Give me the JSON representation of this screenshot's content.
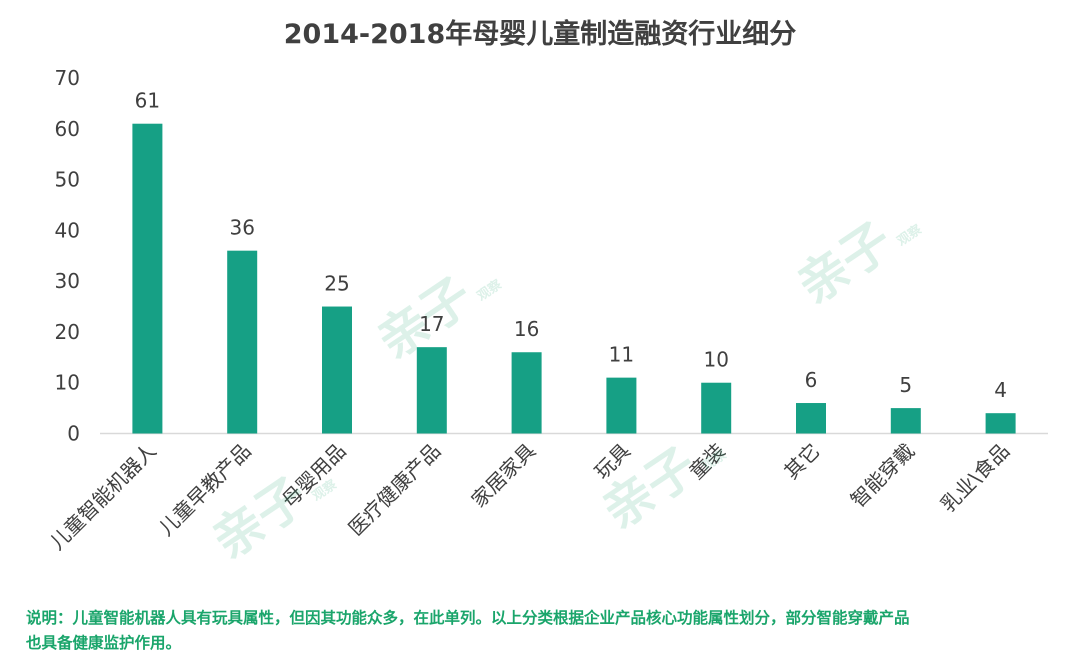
{
  "chart_data": {
    "type": "bar",
    "title": "2014-2018年母婴儿童制造融资行业细分",
    "categories": [
      "儿童智能机器人",
      "儿童早教产品",
      "母婴用品",
      "医疗健康产品",
      "家居家具",
      "玩具",
      "童装",
      "其它",
      "智能穿戴",
      "乳业\\食品"
    ],
    "values": [
      61,
      36,
      25,
      17,
      16,
      11,
      10,
      6,
      5,
      4
    ],
    "yticks": [
      "0",
      "10",
      "20",
      "30",
      "40",
      "50",
      "60",
      "70"
    ],
    "ylim": [
      0,
      70
    ],
    "grid": false,
    "legend": "none",
    "xlabel": "",
    "ylabel": ""
  },
  "colors": {
    "bar": "#16a085",
    "text": "#404040",
    "footnote": "#1aa56b",
    "axis": "#d9d9d9"
  },
  "footnote": {
    "line1": "说明：儿童智能机器人具有玩具属性，但因其功能众多，在此单列。以上分类根据企业产品核心功能属性划分，部分智能穿戴产品",
    "line2": "也具备健康监护作用。"
  },
  "watermark": {
    "text": "亲子",
    "sub": "观察"
  }
}
